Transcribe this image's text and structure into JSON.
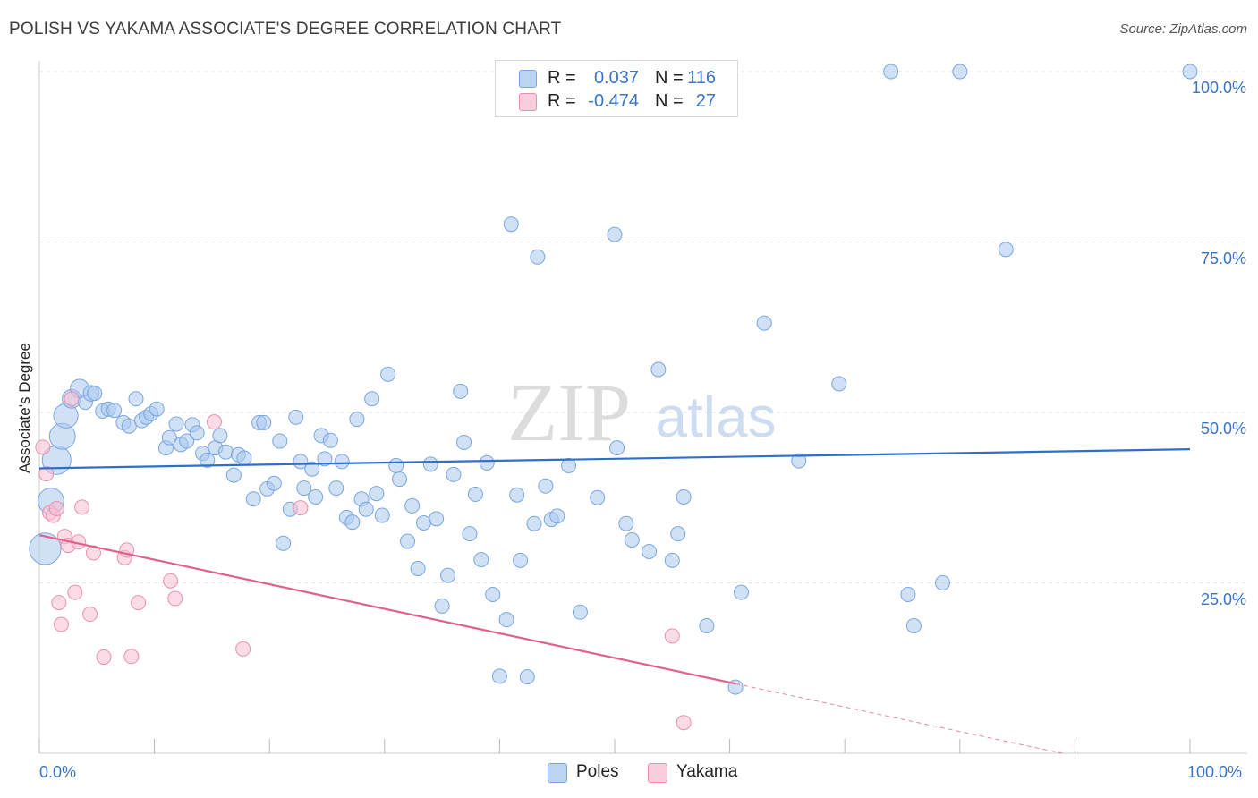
{
  "header": {
    "title": "POLISH VS YAKAMA ASSOCIATE'S DEGREE CORRELATION CHART",
    "source": "Source: ZipAtlas.com"
  },
  "watermark": {
    "zip": "ZIP",
    "atlas": "atlas"
  },
  "legend_top": {
    "rows": [
      {
        "r_label": "R =",
        "r_value": "0.037",
        "n_label": "N =",
        "n_value": "116"
      },
      {
        "r_label": "R =",
        "r_value": "-0.474",
        "n_label": "N =",
        "n_value": "27"
      }
    ]
  },
  "legend_bottom": {
    "poles": "Poles",
    "yakama": "Yakama"
  },
  "colors": {
    "poles_fill": "#a9c8ef",
    "poles_stroke": "#7aa6df",
    "poles_line": "#2f6fcc",
    "yakama_fill": "#f7c0d2",
    "yakama_stroke": "#eb8fae",
    "yakama_line": "#e0608e",
    "axis_text": "#3a74c4",
    "grid": "#e0e0e0"
  },
  "chart_data": {
    "type": "scatter",
    "title": "POLISH VS YAKAMA ASSOCIATE'S DEGREE CORRELATION CHART",
    "xlabel": "",
    "ylabel": "Associate's Degree",
    "xlim": [
      0,
      100
    ],
    "ylim": [
      0,
      100
    ],
    "x_tick_labels": [
      "0.0%",
      "100.0%"
    ],
    "y_tick_labels": [
      "25.0%",
      "50.0%",
      "75.0%",
      "100.0%"
    ],
    "y_ticks": [
      25,
      50,
      75,
      100
    ],
    "grid": true,
    "legend_position": "top-center",
    "series": [
      {
        "name": "Poles",
        "R": 0.037,
        "N": 116,
        "trend": {
          "x0": 0,
          "y0": 41.8,
          "x1": 100,
          "y1": 44.6
        },
        "points": [
          [
            0.5,
            30.0,
            2.2
          ],
          [
            1.0,
            37.0,
            1.8
          ],
          [
            1.5,
            43.0,
            2.0
          ],
          [
            2.0,
            46.5,
            1.8
          ],
          [
            2.3,
            49.5,
            1.7
          ],
          [
            2.8,
            52.0,
            1.3
          ],
          [
            3.5,
            53.5,
            1.3
          ],
          [
            4.0,
            51.5,
            1.0
          ],
          [
            4.5,
            52.8,
            1.1
          ],
          [
            4.8,
            52.8,
            1.0
          ],
          [
            5.5,
            50.2,
            1.0
          ],
          [
            6.0,
            50.5,
            1.0
          ],
          [
            6.5,
            50.3,
            1.0
          ],
          [
            7.3,
            48.5,
            1.0
          ],
          [
            7.8,
            48.0,
            1.0
          ],
          [
            8.4,
            52.0,
            1.0
          ],
          [
            8.9,
            48.8,
            1.0
          ],
          [
            9.3,
            49.3,
            1.0
          ],
          [
            9.7,
            49.8,
            1.0
          ],
          [
            10.2,
            50.5,
            1.0
          ],
          [
            11.0,
            44.8,
            1.0
          ],
          [
            11.3,
            46.3,
            1.0
          ],
          [
            11.9,
            48.3,
            1.0
          ],
          [
            12.3,
            45.3,
            1.0
          ],
          [
            12.8,
            45.8,
            1.0
          ],
          [
            13.3,
            48.2,
            1.0
          ],
          [
            13.7,
            47.0,
            1.0
          ],
          [
            14.2,
            44.0,
            1.0
          ],
          [
            14.6,
            43.0,
            1.0
          ],
          [
            15.3,
            44.8,
            1.0
          ],
          [
            15.7,
            46.6,
            1.0
          ],
          [
            16.2,
            44.2,
            1.0
          ],
          [
            16.9,
            40.8,
            1.0
          ],
          [
            17.3,
            43.8,
            1.0
          ],
          [
            17.8,
            43.3,
            1.0
          ],
          [
            18.6,
            37.3,
            1.0
          ],
          [
            19.1,
            48.5,
            1.0
          ],
          [
            19.5,
            48.5,
            1.0
          ],
          [
            19.8,
            38.8,
            1.0
          ],
          [
            20.4,
            39.6,
            1.0
          ],
          [
            20.9,
            45.8,
            1.0
          ],
          [
            21.2,
            30.8,
            1.0
          ],
          [
            21.8,
            35.8,
            1.0
          ],
          [
            22.3,
            49.3,
            1.0
          ],
          [
            22.7,
            42.8,
            1.0
          ],
          [
            23.0,
            38.9,
            1.0
          ],
          [
            23.7,
            41.7,
            1.0
          ],
          [
            24.0,
            37.6,
            1.0
          ],
          [
            24.5,
            46.6,
            1.0
          ],
          [
            24.8,
            43.2,
            1.0
          ],
          [
            25.3,
            45.9,
            1.0
          ],
          [
            25.8,
            38.9,
            1.0
          ],
          [
            26.3,
            42.8,
            1.0
          ],
          [
            26.7,
            34.6,
            1.0
          ],
          [
            27.2,
            33.9,
            1.0
          ],
          [
            27.6,
            49.0,
            1.0
          ],
          [
            28.0,
            37.3,
            1.0
          ],
          [
            28.4,
            35.8,
            1.0
          ],
          [
            28.9,
            52.0,
            1.0
          ],
          [
            29.3,
            38.1,
            1.0
          ],
          [
            29.8,
            34.9,
            1.0
          ],
          [
            30.3,
            55.6,
            1.0
          ],
          [
            31.0,
            42.2,
            1.0
          ],
          [
            31.3,
            40.2,
            1.0
          ],
          [
            32.0,
            31.1,
            1.0
          ],
          [
            32.4,
            36.3,
            1.0
          ],
          [
            32.9,
            27.1,
            1.0
          ],
          [
            33.4,
            33.8,
            1.0
          ],
          [
            34.0,
            42.4,
            1.0
          ],
          [
            34.5,
            34.4,
            1.0
          ],
          [
            35.0,
            21.6,
            1.0
          ],
          [
            35.5,
            26.1,
            1.0
          ],
          [
            36.0,
            40.9,
            1.0
          ],
          [
            36.6,
            53.1,
            1.0
          ],
          [
            36.9,
            45.6,
            1.0
          ],
          [
            37.4,
            32.2,
            1.0
          ],
          [
            37.9,
            38.0,
            1.0
          ],
          [
            38.4,
            28.4,
            1.0
          ],
          [
            38.9,
            42.6,
            1.0
          ],
          [
            39.4,
            23.3,
            1.0
          ],
          [
            40.0,
            11.3,
            1.0
          ],
          [
            40.6,
            19.6,
            1.0
          ],
          [
            41.0,
            77.6,
            1.0
          ],
          [
            41.5,
            37.9,
            1.0
          ],
          [
            41.8,
            28.3,
            1.0
          ],
          [
            42.4,
            11.2,
            1.0
          ],
          [
            43.0,
            33.7,
            1.0
          ],
          [
            43.3,
            72.8,
            1.0
          ],
          [
            44.0,
            39.2,
            1.0
          ],
          [
            44.5,
            34.3,
            1.0
          ],
          [
            45.0,
            34.8,
            1.0
          ],
          [
            46.0,
            42.2,
            1.0
          ],
          [
            47.0,
            20.7,
            1.0
          ],
          [
            48.5,
            37.5,
            1.0
          ],
          [
            50.0,
            76.1,
            1.0
          ],
          [
            50.2,
            44.8,
            1.0
          ],
          [
            51.0,
            33.7,
            1.0
          ],
          [
            51.5,
            31.3,
            1.0
          ],
          [
            53.0,
            29.6,
            1.0
          ],
          [
            53.8,
            56.3,
            1.0
          ],
          [
            55.0,
            28.3,
            1.0
          ],
          [
            55.5,
            32.2,
            1.0
          ],
          [
            56.0,
            37.6,
            1.0
          ],
          [
            58.0,
            18.7,
            1.0
          ],
          [
            60.5,
            9.7,
            1.0
          ],
          [
            61.0,
            23.6,
            1.0
          ],
          [
            63.0,
            63.1,
            1.0
          ],
          [
            66.0,
            42.9,
            1.0
          ],
          [
            69.5,
            54.2,
            1.0
          ],
          [
            74.0,
            100.0,
            1.0
          ],
          [
            75.5,
            23.3,
            1.0
          ],
          [
            76.0,
            18.7,
            1.0
          ],
          [
            78.5,
            25.0,
            1.0
          ],
          [
            80.0,
            100.0,
            1.0
          ],
          [
            84.0,
            73.9,
            1.0
          ],
          [
            100.0,
            100.0,
            1.0
          ]
        ]
      },
      {
        "name": "Yakama",
        "R": -0.474,
        "N": 27,
        "trend": {
          "x0": 0,
          "y0": 32.0,
          "x1": 60.5,
          "y1": 10.2,
          "dash_to": {
            "x": 100,
            "y": -4.0
          }
        },
        "points": [
          [
            0.3,
            44.9,
            1.0
          ],
          [
            0.6,
            41.0,
            1.0
          ],
          [
            0.9,
            35.3,
            1.0
          ],
          [
            1.2,
            34.9,
            1.0
          ],
          [
            1.5,
            35.9,
            1.0
          ],
          [
            1.7,
            22.1,
            1.0
          ],
          [
            1.9,
            18.9,
            1.0
          ],
          [
            2.2,
            31.8,
            1.0
          ],
          [
            2.5,
            30.5,
            1.0
          ],
          [
            2.8,
            52.0,
            1.0
          ],
          [
            3.1,
            23.6,
            1.0
          ],
          [
            3.4,
            31.0,
            1.0
          ],
          [
            3.7,
            36.1,
            1.0
          ],
          [
            4.4,
            20.4,
            1.0
          ],
          [
            4.7,
            29.4,
            1.0
          ],
          [
            5.6,
            14.1,
            1.0
          ],
          [
            7.4,
            28.7,
            1.0
          ],
          [
            7.6,
            29.8,
            1.0
          ],
          [
            8.0,
            14.2,
            1.0
          ],
          [
            8.6,
            22.1,
            1.0
          ],
          [
            11.4,
            25.3,
            1.0
          ],
          [
            11.8,
            22.7,
            1.0
          ],
          [
            15.2,
            48.6,
            1.0
          ],
          [
            17.7,
            15.3,
            1.0
          ],
          [
            22.7,
            36.0,
            1.0
          ],
          [
            55.0,
            17.2,
            1.0
          ],
          [
            56.0,
            4.5,
            1.0
          ]
        ]
      }
    ]
  }
}
